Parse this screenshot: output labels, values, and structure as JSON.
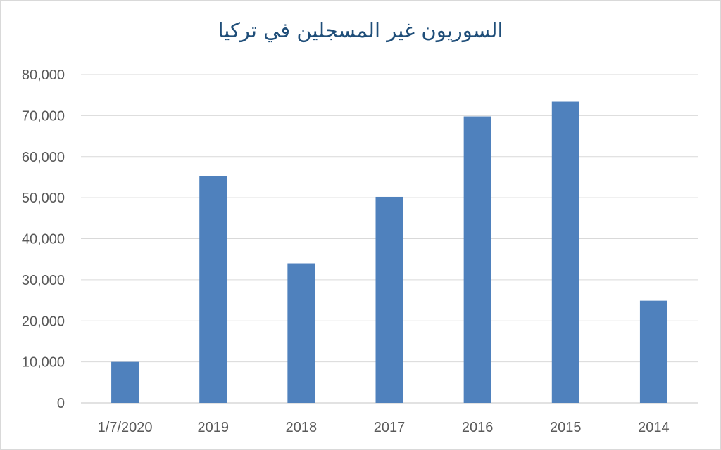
{
  "chart_data": {
    "type": "bar",
    "title": "السوريون غير المسجلين في تركيا",
    "categories": [
      "1/7/2020",
      "2019",
      "2018",
      "2017",
      "2016",
      "2015",
      "2014"
    ],
    "values": [
      10000,
      55200,
      34000,
      50200,
      69800,
      73400,
      24900
    ],
    "ylim": [
      0,
      80000
    ],
    "yticks": [
      "0",
      "10,000",
      "20,000",
      "30,000",
      "40,000",
      "50,000",
      "60,000",
      "70,000",
      "80,000"
    ],
    "grid": true,
    "bar_color": "#4f81bd",
    "grid_color": "#d9d9d9"
  }
}
